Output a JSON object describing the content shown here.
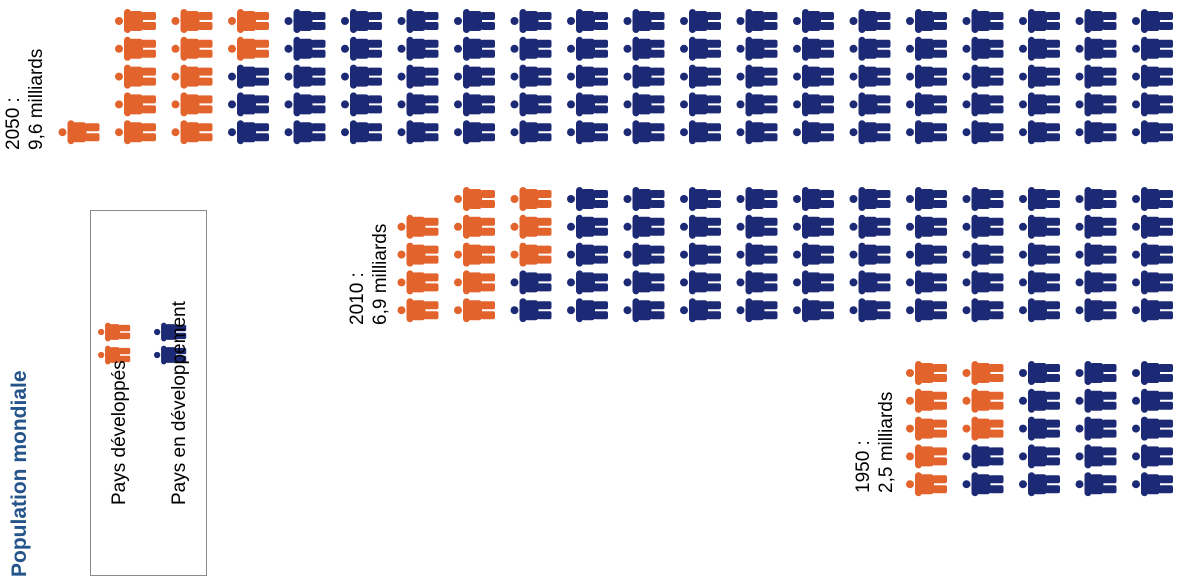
{
  "title": "Population mondiale",
  "colors": {
    "developed": "#E2632C",
    "developing": "#1C2A75",
    "title": "#24548A"
  },
  "legend": {
    "items": [
      {
        "label": "Pays développés",
        "icon": "person-icon",
        "color_key": "developed"
      },
      {
        "label": "Pays en développement",
        "icon": "person-icon",
        "color_key": "developing"
      }
    ]
  },
  "chart_data": {
    "type": "pictogram",
    "title": "Population mondiale",
    "series": [
      {
        "name": "Pays développés",
        "color": "#E2632C"
      },
      {
        "name": "Pays en développement",
        "color": "#1C2A75"
      }
    ],
    "groups": [
      {
        "label_line1": "1950 :",
        "label_line2": "2,5 milliards",
        "year": 1950,
        "total_billion": 2.5,
        "rows": [
          {
            "developed": 2,
            "developing": 3
          },
          {
            "developed": 2,
            "developing": 3
          },
          {
            "developed": 2,
            "developing": 3
          },
          {
            "developed": 1,
            "developing": 4
          },
          {
            "developed": 1,
            "developing": 4
          }
        ]
      },
      {
        "label_line1": "2010 :",
        "label_line2": "6,9 milliards",
        "year": 2010,
        "total_billion": 6.9,
        "rows": [
          {
            "developed": 2,
            "developing": 11
          },
          {
            "developed": 3,
            "developing": 11
          },
          {
            "developed": 3,
            "developing": 11
          },
          {
            "developed": 2,
            "developing": 12
          },
          {
            "developed": 2,
            "developing": 12
          }
        ]
      },
      {
        "label_line1": "2050 :",
        "label_line2": "9,6 milliards",
        "year": 2050,
        "total_billion": 9.6,
        "rows": [
          {
            "developed": 3,
            "developing": 16
          },
          {
            "developed": 3,
            "developing": 16
          },
          {
            "developed": 2,
            "developing": 17
          },
          {
            "developed": 2,
            "developing": 17
          },
          {
            "developed": 3,
            "developing": 17
          }
        ]
      }
    ]
  }
}
